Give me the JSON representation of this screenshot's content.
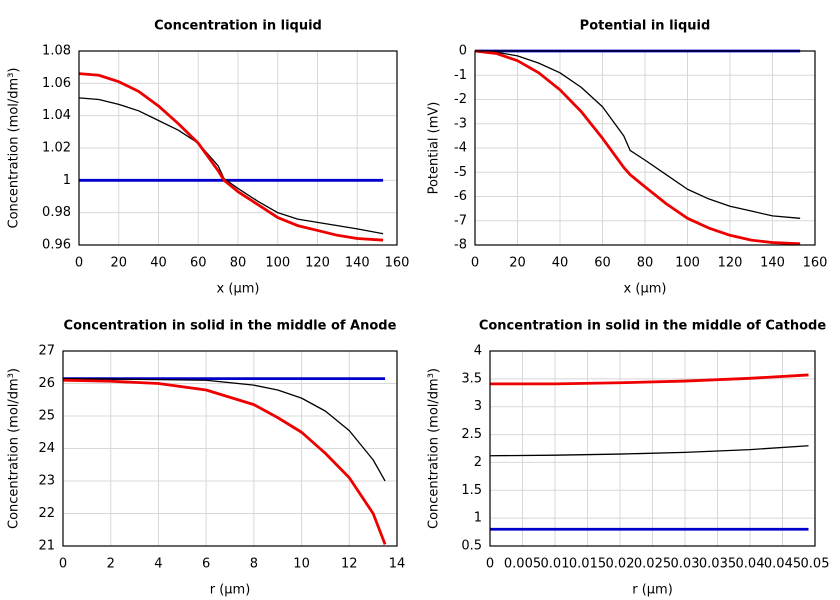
{
  "chart_data": [
    {
      "type": "line",
      "title": "Concentration in liquid",
      "xlabel": "x (µm)",
      "ylabel": "Concentration (mol/dm³)",
      "x": [
        0,
        10,
        20,
        30,
        40,
        50,
        60,
        70,
        73,
        80,
        90,
        100,
        110,
        120,
        130,
        140,
        153
      ],
      "series": [
        {
          "color": "#0000cc",
          "values": [
            1,
            1,
            1,
            1,
            1,
            1,
            1,
            1,
            1,
            1,
            1,
            1,
            1,
            1,
            1,
            1,
            1
          ]
        },
        {
          "color": "#000000",
          "values": [
            1.051,
            1.05,
            1.047,
            1.043,
            1.037,
            1.031,
            1.023,
            1.009,
            1.001,
            0.995,
            0.987,
            0.98,
            0.976,
            0.974,
            0.972,
            0.97,
            0.967
          ]
        },
        {
          "color": "#ee0000",
          "values": [
            1.066,
            1.065,
            1.061,
            1.055,
            1.046,
            1.035,
            1.023,
            1.006,
            1,
            0.993,
            0.985,
            0.977,
            0.972,
            0.969,
            0.966,
            0.964,
            0.963
          ]
        }
      ],
      "xlim": [
        0,
        160
      ],
      "xticks": [
        0,
        20,
        40,
        60,
        80,
        100,
        120,
        140,
        160
      ],
      "ylim": [
        0.96,
        1.08
      ],
      "yticks": [
        0.96,
        0.98,
        1,
        1.02,
        1.04,
        1.06,
        1.08
      ],
      "grid": true
    },
    {
      "type": "line",
      "title": "Potential in liquid",
      "xlabel": "x (µm)",
      "ylabel": "Potential (mV)",
      "x": [
        0,
        10,
        20,
        30,
        40,
        50,
        60,
        70,
        73,
        80,
        90,
        100,
        110,
        120,
        130,
        140,
        153
      ],
      "series": [
        {
          "color": "#0000cc",
          "values": [
            0,
            0,
            0,
            0,
            0,
            0,
            0,
            0,
            0,
            0,
            0,
            0,
            0,
            0,
            0,
            0,
            0
          ]
        },
        {
          "color": "#000000",
          "values": [
            0,
            -0.05,
            -0.2,
            -0.5,
            -0.9,
            -1.5,
            -2.3,
            -3.5,
            -4.1,
            -4.5,
            -5.1,
            -5.7,
            -6.1,
            -6.4,
            -6.6,
            -6.8,
            -6.9
          ]
        },
        {
          "color": "#ee0000",
          "values": [
            0,
            -0.1,
            -0.4,
            -0.9,
            -1.6,
            -2.5,
            -3.6,
            -4.8,
            -5.1,
            -5.6,
            -6.3,
            -6.9,
            -7.3,
            -7.6,
            -7.8,
            -7.9,
            -7.95
          ]
        }
      ],
      "xlim": [
        0,
        160
      ],
      "xticks": [
        0,
        20,
        40,
        60,
        80,
        100,
        120,
        140,
        160
      ],
      "ylim": [
        -8,
        0
      ],
      "yticks": [
        -8,
        -7,
        -6,
        -5,
        -4,
        -3,
        -2,
        -1,
        0
      ],
      "grid": true
    },
    {
      "type": "line",
      "title": "Concentration in solid in the middle of Anode",
      "xlabel": "r (µm)",
      "ylabel": "Concentration (mol/dm³)",
      "x": [
        0,
        2,
        4,
        6,
        8,
        9,
        10,
        11,
        12,
        13,
        13.5
      ],
      "series": [
        {
          "color": "#0000cc",
          "values": [
            26.15,
            26.15,
            26.15,
            26.15,
            26.15,
            26.15,
            26.15,
            26.15,
            26.15,
            26.15,
            26.15
          ]
        },
        {
          "color": "#000000",
          "values": [
            26.15,
            26.14,
            26.12,
            26.1,
            25.95,
            25.8,
            25.55,
            25.15,
            24.55,
            23.65,
            23
          ]
        },
        {
          "color": "#ee0000",
          "values": [
            26.1,
            26.07,
            26,
            25.8,
            25.35,
            24.95,
            24.5,
            23.85,
            23.1,
            22,
            21.05
          ]
        }
      ],
      "xlim": [
        0,
        14
      ],
      "xticks": [
        0,
        2,
        4,
        6,
        8,
        10,
        12,
        14
      ],
      "ylim": [
        21,
        27
      ],
      "yticks": [
        21,
        22,
        23,
        24,
        25,
        26,
        27
      ],
      "grid": true
    },
    {
      "type": "line",
      "title": "Concentration in solid in the middle of Cathode",
      "xlabel": "r (µm)",
      "ylabel": "Concentration (mol/dm³)",
      "x": [
        0,
        0.01,
        0.02,
        0.03,
        0.04,
        0.049
      ],
      "series": [
        {
          "color": "#0000cc",
          "values": [
            0.8,
            0.8,
            0.8,
            0.8,
            0.8,
            0.8
          ]
        },
        {
          "color": "#000000",
          "values": [
            2.12,
            2.13,
            2.15,
            2.18,
            2.23,
            2.3
          ]
        },
        {
          "color": "#ee0000",
          "values": [
            3.41,
            3.41,
            3.43,
            3.46,
            3.51,
            3.57
          ]
        }
      ],
      "xlim": [
        0,
        0.05
      ],
      "xticks": [
        0,
        0.005,
        0.01,
        0.015,
        0.02,
        0.025,
        0.03,
        0.035,
        0.04,
        0.045,
        0.05
      ],
      "ylim": [
        0.5,
        4
      ],
      "yticks": [
        0.5,
        1,
        1.5,
        2,
        2.5,
        3,
        3.5,
        4
      ],
      "grid": true
    }
  ]
}
